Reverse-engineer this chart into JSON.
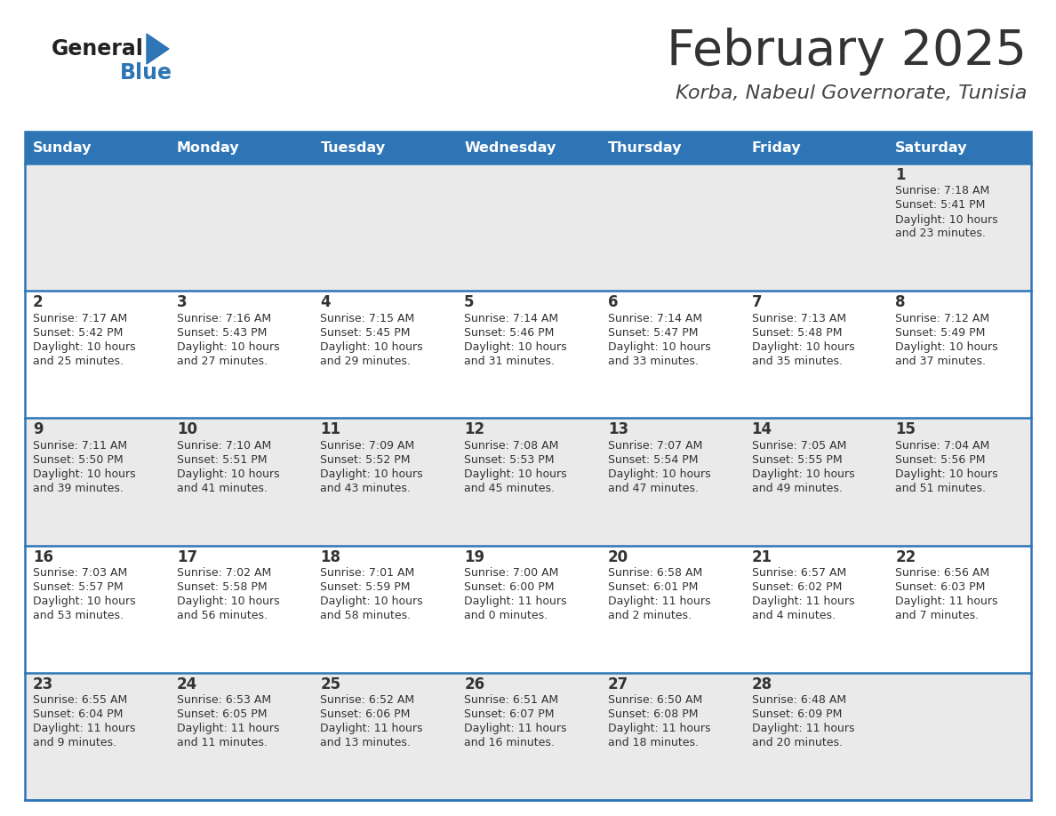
{
  "title": "February 2025",
  "subtitle": "Korba, Nabeul Governorate, Tunisia",
  "days_of_week": [
    "Sunday",
    "Monday",
    "Tuesday",
    "Wednesday",
    "Thursday",
    "Friday",
    "Saturday"
  ],
  "header_bg": "#2E75B6",
  "header_text": "#FFFFFF",
  "row_bg_light": "#EAEAEA",
  "row_bg_white": "#FFFFFF",
  "cell_border": "#2E75B6",
  "day_num_color": "#333333",
  "info_text_color": "#333333",
  "title_color": "#333333",
  "subtitle_color": "#444444",
  "logo_general_color": "#222222",
  "logo_blue_color": "#2E75B6",
  "logo_triangle_color": "#2E75B6",
  "calendar_data": [
    [
      null,
      null,
      null,
      null,
      null,
      null,
      {
        "day": 1,
        "sunrise": "7:18 AM",
        "sunset": "5:41 PM",
        "daylight_line1": "Daylight: 10 hours",
        "daylight_line2": "and 23 minutes."
      }
    ],
    [
      {
        "day": 2,
        "sunrise": "7:17 AM",
        "sunset": "5:42 PM",
        "daylight_line1": "Daylight: 10 hours",
        "daylight_line2": "and 25 minutes."
      },
      {
        "day": 3,
        "sunrise": "7:16 AM",
        "sunset": "5:43 PM",
        "daylight_line1": "Daylight: 10 hours",
        "daylight_line2": "and 27 minutes."
      },
      {
        "day": 4,
        "sunrise": "7:15 AM",
        "sunset": "5:45 PM",
        "daylight_line1": "Daylight: 10 hours",
        "daylight_line2": "and 29 minutes."
      },
      {
        "day": 5,
        "sunrise": "7:14 AM",
        "sunset": "5:46 PM",
        "daylight_line1": "Daylight: 10 hours",
        "daylight_line2": "and 31 minutes."
      },
      {
        "day": 6,
        "sunrise": "7:14 AM",
        "sunset": "5:47 PM",
        "daylight_line1": "Daylight: 10 hours",
        "daylight_line2": "and 33 minutes."
      },
      {
        "day": 7,
        "sunrise": "7:13 AM",
        "sunset": "5:48 PM",
        "daylight_line1": "Daylight: 10 hours",
        "daylight_line2": "and 35 minutes."
      },
      {
        "day": 8,
        "sunrise": "7:12 AM",
        "sunset": "5:49 PM",
        "daylight_line1": "Daylight: 10 hours",
        "daylight_line2": "and 37 minutes."
      }
    ],
    [
      {
        "day": 9,
        "sunrise": "7:11 AM",
        "sunset": "5:50 PM",
        "daylight_line1": "Daylight: 10 hours",
        "daylight_line2": "and 39 minutes."
      },
      {
        "day": 10,
        "sunrise": "7:10 AM",
        "sunset": "5:51 PM",
        "daylight_line1": "Daylight: 10 hours",
        "daylight_line2": "and 41 minutes."
      },
      {
        "day": 11,
        "sunrise": "7:09 AM",
        "sunset": "5:52 PM",
        "daylight_line1": "Daylight: 10 hours",
        "daylight_line2": "and 43 minutes."
      },
      {
        "day": 12,
        "sunrise": "7:08 AM",
        "sunset": "5:53 PM",
        "daylight_line1": "Daylight: 10 hours",
        "daylight_line2": "and 45 minutes."
      },
      {
        "day": 13,
        "sunrise": "7:07 AM",
        "sunset": "5:54 PM",
        "daylight_line1": "Daylight: 10 hours",
        "daylight_line2": "and 47 minutes."
      },
      {
        "day": 14,
        "sunrise": "7:05 AM",
        "sunset": "5:55 PM",
        "daylight_line1": "Daylight: 10 hours",
        "daylight_line2": "and 49 minutes."
      },
      {
        "day": 15,
        "sunrise": "7:04 AM",
        "sunset": "5:56 PM",
        "daylight_line1": "Daylight: 10 hours",
        "daylight_line2": "and 51 minutes."
      }
    ],
    [
      {
        "day": 16,
        "sunrise": "7:03 AM",
        "sunset": "5:57 PM",
        "daylight_line1": "Daylight: 10 hours",
        "daylight_line2": "and 53 minutes."
      },
      {
        "day": 17,
        "sunrise": "7:02 AM",
        "sunset": "5:58 PM",
        "daylight_line1": "Daylight: 10 hours",
        "daylight_line2": "and 56 minutes."
      },
      {
        "day": 18,
        "sunrise": "7:01 AM",
        "sunset": "5:59 PM",
        "daylight_line1": "Daylight: 10 hours",
        "daylight_line2": "and 58 minutes."
      },
      {
        "day": 19,
        "sunrise": "7:00 AM",
        "sunset": "6:00 PM",
        "daylight_line1": "Daylight: 11 hours",
        "daylight_line2": "and 0 minutes."
      },
      {
        "day": 20,
        "sunrise": "6:58 AM",
        "sunset": "6:01 PM",
        "daylight_line1": "Daylight: 11 hours",
        "daylight_line2": "and 2 minutes."
      },
      {
        "day": 21,
        "sunrise": "6:57 AM",
        "sunset": "6:02 PM",
        "daylight_line1": "Daylight: 11 hours",
        "daylight_line2": "and 4 minutes."
      },
      {
        "day": 22,
        "sunrise": "6:56 AM",
        "sunset": "6:03 PM",
        "daylight_line1": "Daylight: 11 hours",
        "daylight_line2": "and 7 minutes."
      }
    ],
    [
      {
        "day": 23,
        "sunrise": "6:55 AM",
        "sunset": "6:04 PM",
        "daylight_line1": "Daylight: 11 hours",
        "daylight_line2": "and 9 minutes."
      },
      {
        "day": 24,
        "sunrise": "6:53 AM",
        "sunset": "6:05 PM",
        "daylight_line1": "Daylight: 11 hours",
        "daylight_line2": "and 11 minutes."
      },
      {
        "day": 25,
        "sunrise": "6:52 AM",
        "sunset": "6:06 PM",
        "daylight_line1": "Daylight: 11 hours",
        "daylight_line2": "and 13 minutes."
      },
      {
        "day": 26,
        "sunrise": "6:51 AM",
        "sunset": "6:07 PM",
        "daylight_line1": "Daylight: 11 hours",
        "daylight_line2": "and 16 minutes."
      },
      {
        "day": 27,
        "sunrise": "6:50 AM",
        "sunset": "6:08 PM",
        "daylight_line1": "Daylight: 11 hours",
        "daylight_line2": "and 18 minutes."
      },
      {
        "day": 28,
        "sunrise": "6:48 AM",
        "sunset": "6:09 PM",
        "daylight_line1": "Daylight: 11 hours",
        "daylight_line2": "and 20 minutes."
      },
      null
    ]
  ]
}
